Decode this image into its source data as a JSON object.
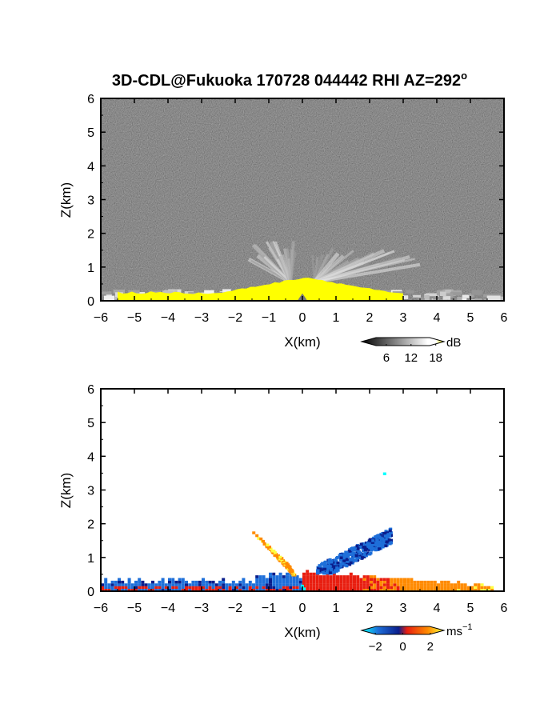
{
  "title": "3D-CDL@Fukuoka 170728 044442 RHI AZ=292",
  "title_superscript": "o",
  "chart_data": [
    {
      "type": "heatmap",
      "panel": "top",
      "quantity": "signal intensity",
      "xlabel": "X(km)",
      "ylabel": "Z(km)",
      "xlim": [
        -6,
        6
      ],
      "ylim": [
        0,
        6
      ],
      "xticks": [
        "-6",
        "-5",
        "-4",
        "-3",
        "-2",
        "-1",
        "0",
        "1",
        "2",
        "3",
        "4",
        "5",
        "6"
      ],
      "yticks": [
        "0",
        "1",
        "2",
        "3",
        "4",
        "5",
        "6"
      ],
      "colorbar": {
        "unit": "dB",
        "ticks": [
          "6",
          "12",
          "18"
        ],
        "tick_values": [
          6,
          12,
          18
        ],
        "range": [
          0,
          20
        ],
        "colors": [
          "#000000",
          "#ffffff",
          "#ffff00"
        ]
      },
      "background_color": "#2a2a2a",
      "features": [
        {
          "kind": "near-ground strong echo",
          "color": "#ffff00",
          "x": [
            -5.5,
            3.0
          ],
          "z": [
            0.0,
            0.45
          ],
          "peak_height_km": 0.7,
          "peak_x_km": 0.1
        },
        {
          "kind": "gray layer",
          "x": [
            -6.0,
            6.0
          ],
          "z": [
            0.0,
            0.35
          ]
        },
        {
          "kind": "beam streaks",
          "x": [
            -1.6,
            -0.2
          ],
          "z": [
            0.4,
            1.8
          ]
        },
        {
          "kind": "beam streaks",
          "x": [
            0.3,
            3.5
          ],
          "z": [
            0.4,
            1.6
          ]
        }
      ]
    },
    {
      "type": "heatmap",
      "panel": "bottom",
      "quantity": "Doppler velocity",
      "xlabel": "X(km)",
      "ylabel": "Z(km)",
      "xlim": [
        -6,
        6
      ],
      "ylim": [
        0,
        6
      ],
      "xticks": [
        "-6",
        "-5",
        "-4",
        "-3",
        "-2",
        "-1",
        "0",
        "1",
        "2",
        "3",
        "4",
        "5",
        "6"
      ],
      "yticks": [
        "0",
        "1",
        "2",
        "3",
        "4",
        "5",
        "6"
      ],
      "colorbar": {
        "unit": "ms",
        "unit_superscript": "−1",
        "ticks": [
          "−2",
          "0",
          "2"
        ],
        "tick_values": [
          -2,
          0,
          2
        ],
        "range": [
          -3,
          3
        ],
        "colors": [
          "#00ffff",
          "#1e6fd9",
          "#0a1e8c",
          "#e81e10",
          "#ff8a00",
          "#ffff40"
        ]
      },
      "background_color": "#ffffff",
      "features": [
        {
          "kind": "negative velocity layer",
          "color": "#1e6fd9",
          "x": [
            -6.0,
            0.0
          ],
          "z": [
            0.0,
            0.35
          ]
        },
        {
          "kind": "positive velocity layer",
          "color": "#ff8a00",
          "x": [
            0.0,
            5.6
          ],
          "z": [
            0.0,
            0.5
          ]
        },
        {
          "kind": "negative velocity plume",
          "color": "#3fa5ef",
          "x": [
            0.4,
            2.6
          ],
          "z": [
            0.5,
            1.8
          ]
        },
        {
          "kind": "positive velocity streaks",
          "color": "#ffd21e",
          "x": [
            -1.5,
            -0.3
          ],
          "z": [
            0.4,
            1.7
          ]
        },
        {
          "kind": "isolated echo",
          "x": [
            2.4
          ],
          "z": [
            3.45
          ]
        }
      ]
    }
  ]
}
